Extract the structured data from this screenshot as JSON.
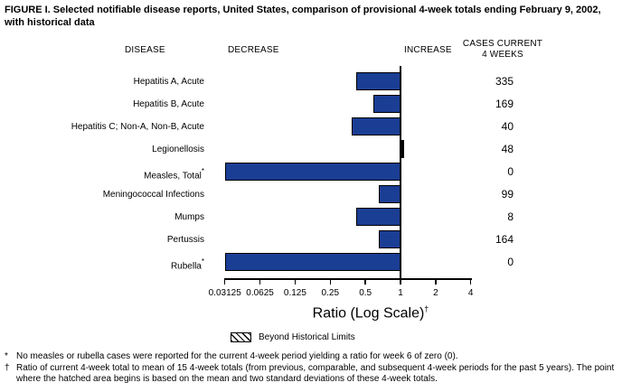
{
  "title": "FIGURE I. Selected notifiable disease reports, United States, comparison of provisional 4-week totals ending February 9, 2002, with historical data",
  "columns": {
    "disease": "DISEASE",
    "decrease": "DECREASE",
    "increase": "INCREASE",
    "cases_line1": "CASES CURRENT",
    "cases_line2": "4 WEEKS"
  },
  "chart_data": {
    "type": "bar",
    "orientation": "horizontal",
    "scale": "log2",
    "baseline": 1,
    "xlabel": "Ratio (Log Scale)",
    "xlabel_marker": "†",
    "xlim": [
      0.03125,
      4
    ],
    "ticks": [
      0.03125,
      0.0625,
      0.125,
      0.25,
      0.5,
      1,
      2,
      4
    ],
    "tick_labels": [
      "0.03125",
      "0.0625",
      "0.125",
      "0.25",
      "0.5",
      "1",
      "2",
      "4"
    ],
    "bar_color": "#1a3e94",
    "beyond_limits_color": "#000000",
    "rows": [
      {
        "disease": "Hepatitis A, Acute",
        "marker": "",
        "ratio": 0.42,
        "cases_current_4_weeks": "335",
        "beyond_historical_limits": false
      },
      {
        "disease": "Hepatitis B, Acute",
        "marker": "",
        "ratio": 0.59,
        "cases_current_4_weeks": "169",
        "beyond_historical_limits": false
      },
      {
        "disease": "Hepatitis C; Non-A, Non-B, Acute",
        "marker": "",
        "ratio": 0.38,
        "cases_current_4_weeks": "40",
        "beyond_historical_limits": false
      },
      {
        "disease": "Legionellosis",
        "marker": "",
        "ratio": 1.08,
        "cases_current_4_weeks": "48",
        "beyond_historical_limits": true
      },
      {
        "disease": "Measles, Total",
        "marker": "*",
        "ratio": 0,
        "cases_current_4_weeks": "0",
        "beyond_historical_limits": false
      },
      {
        "disease": "Meningococcal Infections",
        "marker": "",
        "ratio": 0.65,
        "cases_current_4_weeks": "99",
        "beyond_historical_limits": false
      },
      {
        "disease": "Mumps",
        "marker": "",
        "ratio": 0.42,
        "cases_current_4_weeks": "8",
        "beyond_historical_limits": false
      },
      {
        "disease": "Pertussis",
        "marker": "",
        "ratio": 0.65,
        "cases_current_4_weeks": "164",
        "beyond_historical_limits": false
      },
      {
        "disease": "Rubella",
        "marker": "*",
        "ratio": 0,
        "cases_current_4_weeks": "0",
        "beyond_historical_limits": false
      }
    ]
  },
  "legend": {
    "label": "Beyond Historical Limits"
  },
  "footnotes": [
    {
      "marker": "*",
      "text": "No measles or rubella cases were reported for the current 4-week period yielding a ratio for week 6 of zero (0)."
    },
    {
      "marker": "†",
      "text": "Ratio of current 4-week total to mean of 15 4-week totals (from previous, comparable, and subsequent 4-week periods for the past 5 years). The point where the hatched area begins is based on the mean and two standard deviations of these 4-week totals."
    }
  ]
}
